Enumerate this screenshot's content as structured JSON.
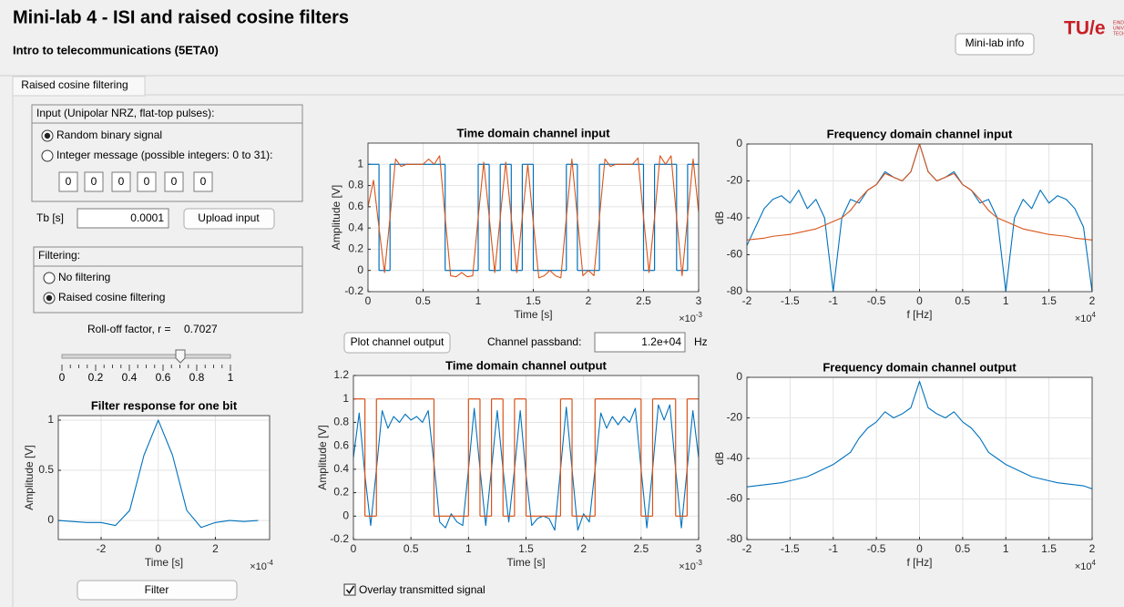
{
  "header": {
    "title": "Mini-lab 4 - ISI and raised cosine filters",
    "subtitle": "Intro to telecommunications (5ETA0)",
    "info_button": "Mini-lab info",
    "logo": "TU/e",
    "logo_lines": [
      "EINDHOVEN",
      "UNIVERSITY OF",
      "TECHNOLOGY"
    ]
  },
  "tab": "Raised cosine filtering",
  "input_panel": {
    "title": "Input (Unipolar NRZ, flat-top pulses):",
    "options": [
      "Random binary signal",
      "Integer message (possible integers: 0 to 31):"
    ],
    "selected": 0,
    "integers": [
      0,
      0,
      0,
      0,
      0,
      0
    ]
  },
  "tb": {
    "label": "Tb [s]",
    "value": 0.0001,
    "button": "Upload input"
  },
  "filtering_panel": {
    "title": "Filtering:",
    "options": [
      "No filtering",
      "Raised cosine filtering"
    ],
    "selected": 1
  },
  "rolloff": {
    "label": "Roll-off factor, r =",
    "value": 0.7027,
    "lim": [
      0,
      1
    ],
    "ticks": [
      0,
      0.2,
      0.4,
      0.6,
      0.8,
      1
    ]
  },
  "plot_button": "Plot channel output",
  "passband": {
    "label": "Channel passband:",
    "value": "1.2e+04",
    "unit": "Hz"
  },
  "filter_button": "Filter",
  "overlay": {
    "label": "Overlay transmitted signal",
    "checked": true
  },
  "chart_data": [
    {
      "type": "line",
      "title": "Time domain channel input",
      "xlabel": "Time [s]",
      "ylabel": "Amplitude [V]",
      "x_multiplier": {
        "base": "×10",
        "exponent": "-3"
      },
      "grid": true,
      "xlim": [
        0,
        0.003
      ],
      "ylim": [
        -0.2,
        1.2
      ],
      "xticks": [
        0,
        {
          "value": 0.0005,
          "label": "0.5"
        },
        {
          "value": 0.001,
          "label": "1"
        },
        {
          "value": 0.0015,
          "label": "1.5"
        },
        {
          "value": 0.002,
          "label": "2"
        },
        {
          "value": 0.0025,
          "label": "2.5"
        },
        {
          "value": 0.003,
          "label": "3"
        }
      ],
      "yticks": [
        -0.2,
        0,
        0.2,
        0.4,
        0.6,
        0.8,
        1
      ],
      "series": [
        {
          "kind": "step",
          "color": "#0072bd",
          "x": [
            0,
            0.0001,
            0.0002,
            0.0003,
            0.0004,
            0.0005,
            0.0006,
            0.0007,
            0.0008,
            0.0009,
            0.001,
            0.0011,
            0.0012,
            0.0013,
            0.0014,
            0.0015,
            0.0016,
            0.0017,
            0.0018,
            0.0019,
            0.002,
            0.0021,
            0.0022,
            0.0023,
            0.0024,
            0.0025,
            0.0026,
            0.0027,
            0.0028,
            0.0029
          ],
          "values": [
            1,
            0,
            1,
            1,
            1,
            1,
            1,
            0,
            0,
            0,
            1,
            0,
            1,
            0,
            1,
            0,
            0,
            0,
            1,
            0,
            0,
            1,
            1,
            1,
            1,
            0,
            1,
            1,
            0,
            1
          ]
        },
        {
          "kind": "line",
          "color": "#d95319",
          "x": [
            0,
            5e-05,
            0.0001,
            0.00015,
            0.0002,
            0.00025,
            0.0003,
            0.00035,
            0.0004,
            0.00045,
            0.0005,
            0.00055,
            0.0006,
            0.00065,
            0.0007,
            0.00075,
            0.0008,
            0.00085,
            0.0009,
            0.00095,
            0.001,
            0.00105,
            0.0011,
            0.00115,
            0.0012,
            0.00125,
            0.0013,
            0.00135,
            0.0014,
            0.00145,
            0.0015,
            0.00155,
            0.0016,
            0.00165,
            0.0017,
            0.00175,
            0.0018,
            0.00185,
            0.0019,
            0.00195,
            0.002,
            0.00205,
            0.0021,
            0.00215,
            0.0022,
            0.00225,
            0.0023,
            0.00235,
            0.0024,
            0.00245,
            0.0025,
            0.00255,
            0.0026,
            0.00265,
            0.0027,
            0.00275,
            0.0028,
            0.00285,
            0.0029,
            0.00295,
            0.003
          ],
          "values": [
            0.6,
            0.85,
            0.4,
            -0.02,
            0.5,
            1.05,
            0.98,
            1.0,
            1.0,
            1.0,
            1.0,
            1.05,
            1.0,
            1.08,
            0.5,
            -0.05,
            -0.06,
            -0.02,
            -0.06,
            -0.05,
            0.5,
            1.02,
            0.5,
            -0.02,
            0.5,
            1.02,
            0.5,
            -0.02,
            0.5,
            1.0,
            0.45,
            -0.07,
            -0.05,
            0.0,
            -0.05,
            -0.07,
            0.5,
            1.05,
            0.5,
            -0.05,
            0.0,
            -0.05,
            0.5,
            1.05,
            0.98,
            1.0,
            1.0,
            1.0,
            1.0,
            1.06,
            0.5,
            -0.02,
            0.5,
            1.08,
            1.0,
            1.08,
            0.5,
            -0.05,
            0.5,
            1.05,
            0.55
          ]
        }
      ]
    },
    {
      "type": "line",
      "title": "Frequency domain channel input",
      "xlabel": "f [Hz]",
      "ylabel": "dB",
      "x_multiplier": {
        "base": "×10",
        "exponent": "4"
      },
      "grid": true,
      "xlim": [
        -20000,
        20000
      ],
      "ylim": [
        -80,
        0
      ],
      "xticks": [
        {
          "value": -20000,
          "label": "-2"
        },
        {
          "value": -15000,
          "label": "-1.5"
        },
        {
          "value": -10000,
          "label": "-1"
        },
        {
          "value": -5000,
          "label": "-0.5"
        },
        0,
        {
          "value": 5000,
          "label": "0.5"
        },
        {
          "value": 10000,
          "label": "1"
        },
        {
          "value": 15000,
          "label": "1.5"
        },
        {
          "value": 20000,
          "label": "2"
        }
      ],
      "yticks": [
        -80,
        -60,
        -40,
        -20,
        0
      ],
      "series": [
        {
          "kind": "line",
          "color": "#0072bd",
          "x": [
            -20000,
            -19000,
            -18000,
            -17000,
            -16000,
            -15000,
            -14000,
            -13000,
            -12000,
            -11000,
            -10000,
            -9000,
            -8000,
            -7000,
            -6000,
            -5000,
            -4000,
            -3000,
            -2000,
            -1000,
            0,
            1000,
            2000,
            3000,
            4000,
            5000,
            6000,
            7000,
            8000,
            9000,
            10000,
            11000,
            12000,
            13000,
            14000,
            15000,
            16000,
            17000,
            18000,
            19000,
            20000
          ],
          "values": [
            -55,
            -45,
            -35,
            -30,
            -28,
            -32,
            -25,
            -35,
            -30,
            -40,
            -80,
            -40,
            -30,
            -32,
            -25,
            -22,
            -15,
            -18,
            -20,
            -15,
            0,
            -15,
            -20,
            -18,
            -15,
            -22,
            -25,
            -32,
            -30,
            -40,
            -80,
            -40,
            -30,
            -35,
            -25,
            -32,
            -28,
            -30,
            -35,
            -45,
            -80
          ]
        },
        {
          "kind": "line",
          "color": "#d95319",
          "x": [
            -20000,
            -19000,
            -18000,
            -17000,
            -16000,
            -15000,
            -14000,
            -13000,
            -12000,
            -11000,
            -10000,
            -9000,
            -8000,
            -7000,
            -6000,
            -5000,
            -4000,
            -3000,
            -2000,
            -1000,
            0,
            1000,
            2000,
            3000,
            4000,
            5000,
            6000,
            7000,
            8000,
            9000,
            10000,
            11000,
            12000,
            13000,
            14000,
            15000,
            16000,
            17000,
            18000,
            19000,
            20000
          ],
          "values": [
            -52,
            -51.5,
            -51,
            -50,
            -49.5,
            -49,
            -48,
            -47,
            -46,
            -44,
            -42,
            -40,
            -36,
            -30,
            -25,
            -22,
            -16,
            -18,
            -20,
            -15,
            0,
            -15,
            -20,
            -18,
            -16,
            -22,
            -25,
            -30,
            -36,
            -40,
            -42,
            -44,
            -46,
            -47,
            -48,
            -49,
            -49.5,
            -50,
            -51,
            -51.5,
            -52
          ]
        }
      ]
    },
    {
      "type": "line",
      "title": "Time domain channel output",
      "xlabel": "Time [s]",
      "ylabel": "Amplitude [V]",
      "x_multiplier": {
        "base": "×10",
        "exponent": "-3"
      },
      "grid": true,
      "xlim": [
        0,
        0.003
      ],
      "ylim": [
        -0.2,
        1.2
      ],
      "xticks": [
        0,
        {
          "value": 0.0005,
          "label": "0.5"
        },
        {
          "value": 0.001,
          "label": "1"
        },
        {
          "value": 0.0015,
          "label": "1.5"
        },
        {
          "value": 0.002,
          "label": "2"
        },
        {
          "value": 0.0025,
          "label": "2.5"
        },
        {
          "value": 0.003,
          "label": "3"
        }
      ],
      "yticks": [
        -0.2,
        0,
        0.2,
        0.4,
        0.6,
        0.8,
        1,
        1.2
      ],
      "series": [
        {
          "kind": "line",
          "color": "#0072bd",
          "x": [
            0,
            5e-05,
            0.0001,
            0.00015,
            0.0002,
            0.00025,
            0.0003,
            0.00035,
            0.0004,
            0.00045,
            0.0005,
            0.00055,
            0.0006,
            0.00065,
            0.0007,
            0.00075,
            0.0008,
            0.00085,
            0.0009,
            0.00095,
            0.001,
            0.00105,
            0.0011,
            0.00115,
            0.0012,
            0.00125,
            0.0013,
            0.00135,
            0.0014,
            0.00145,
            0.0015,
            0.00155,
            0.0016,
            0.00165,
            0.0017,
            0.00175,
            0.0018,
            0.00185,
            0.0019,
            0.00195,
            0.002,
            0.00205,
            0.0021,
            0.00215,
            0.0022,
            0.00225,
            0.0023,
            0.00235,
            0.0024,
            0.00245,
            0.0025,
            0.00255,
            0.0026,
            0.00265,
            0.0027,
            0.00275,
            0.0028,
            0.00285,
            0.0029,
            0.00295,
            0.003
          ],
          "values": [
            0.5,
            0.88,
            0.35,
            -0.08,
            0.4,
            0.9,
            0.75,
            0.85,
            0.8,
            0.87,
            0.82,
            0.85,
            0.8,
            0.9,
            0.45,
            -0.05,
            -0.1,
            0.02,
            -0.05,
            -0.08,
            0.4,
            0.92,
            0.4,
            -0.08,
            0.4,
            0.9,
            0.4,
            -0.05,
            0.4,
            0.9,
            0.35,
            -0.08,
            -0.02,
            0.0,
            -0.02,
            -0.12,
            0.4,
            0.93,
            0.4,
            -0.12,
            0.02,
            -0.05,
            0.4,
            0.88,
            0.75,
            0.85,
            0.78,
            0.85,
            0.8,
            0.92,
            0.4,
            -0.1,
            0.4,
            0.95,
            0.82,
            0.95,
            0.4,
            -0.1,
            0.4,
            0.9,
            0.5
          ]
        },
        {
          "kind": "step",
          "color": "#d95319",
          "x": [
            0,
            0.0001,
            0.0002,
            0.0003,
            0.0004,
            0.0005,
            0.0006,
            0.0007,
            0.0008,
            0.0009,
            0.001,
            0.0011,
            0.0012,
            0.0013,
            0.0014,
            0.0015,
            0.0016,
            0.0017,
            0.0018,
            0.0019,
            0.002,
            0.0021,
            0.0022,
            0.0023,
            0.0024,
            0.0025,
            0.0026,
            0.0027,
            0.0028,
            0.0029
          ],
          "values": [
            1,
            0,
            1,
            1,
            1,
            1,
            1,
            0,
            0,
            0,
            1,
            0,
            1,
            0,
            1,
            0,
            0,
            0,
            1,
            0,
            0,
            1,
            1,
            1,
            1,
            0,
            1,
            1,
            0,
            1
          ]
        }
      ]
    },
    {
      "type": "line",
      "title": "Frequency domain channel output",
      "xlabel": "f [Hz]",
      "ylabel": "dB",
      "x_multiplier": {
        "base": "×10",
        "exponent": "4"
      },
      "grid": true,
      "xlim": [
        -20000,
        20000
      ],
      "ylim": [
        -80,
        0
      ],
      "xticks": [
        {
          "value": -20000,
          "label": "-2"
        },
        {
          "value": -15000,
          "label": "-1.5"
        },
        {
          "value": -10000,
          "label": "-1"
        },
        {
          "value": -5000,
          "label": "-0.5"
        },
        0,
        {
          "value": 5000,
          "label": "0.5"
        },
        {
          "value": 10000,
          "label": "1"
        },
        {
          "value": 15000,
          "label": "1.5"
        },
        {
          "value": 20000,
          "label": "2"
        }
      ],
      "yticks": [
        -80,
        -60,
        -40,
        -20,
        0
      ],
      "series": [
        {
          "kind": "line",
          "color": "#0072bd",
          "x": [
            -20000,
            -19000,
            -18000,
            -17000,
            -16000,
            -15000,
            -14000,
            -13000,
            -12000,
            -11000,
            -10000,
            -9000,
            -8000,
            -7000,
            -6000,
            -5000,
            -4000,
            -3000,
            -2000,
            -1000,
            0,
            1000,
            2000,
            3000,
            4000,
            5000,
            6000,
            7000,
            8000,
            9000,
            10000,
            11000,
            12000,
            13000,
            14000,
            15000,
            16000,
            17000,
            18000,
            19000,
            20000
          ],
          "values": [
            -54,
            -53.5,
            -53,
            -52.5,
            -52,
            -51,
            -50,
            -49,
            -47,
            -45,
            -43,
            -40,
            -37,
            -30,
            -25,
            -22,
            -17,
            -20,
            -18,
            -15,
            -2,
            -15,
            -18,
            -20,
            -17,
            -22,
            -25,
            -30,
            -37,
            -40,
            -43,
            -45,
            -47,
            -49,
            -50,
            -51,
            -52,
            -52.5,
            -53,
            -53.5,
            -55
          ]
        }
      ]
    },
    {
      "type": "line",
      "title": "Filter response for one bit",
      "xlabel": "Time [s]",
      "ylabel": "Amplitude [V]",
      "x_multiplier": {
        "base": "×10",
        "exponent": "-4"
      },
      "grid": true,
      "xlim": [
        -0.00035,
        0.00039
      ],
      "ylim": [
        -0.19,
        1.045
      ],
      "xticks": [
        {
          "value": -0.0002,
          "label": "-2"
        },
        0,
        {
          "value": 0.0002,
          "label": "2"
        }
      ],
      "yticks": [
        0,
        0.5,
        1
      ],
      "series": [
        {
          "kind": "line",
          "color": "#0072bd",
          "x": [
            -0.00035,
            -0.0003,
            -0.00025,
            -0.0002,
            -0.00015,
            -0.0001,
            -5e-05,
            0,
            5e-05,
            0.0001,
            0.00015,
            0.0002,
            0.00025,
            0.0003,
            0.00035
          ],
          "values": [
            0,
            -0.01,
            -0.02,
            -0.02,
            -0.05,
            0.1,
            0.65,
            1,
            0.65,
            0.1,
            -0.07,
            -0.02,
            0,
            -0.01,
            0
          ]
        }
      ]
    }
  ]
}
